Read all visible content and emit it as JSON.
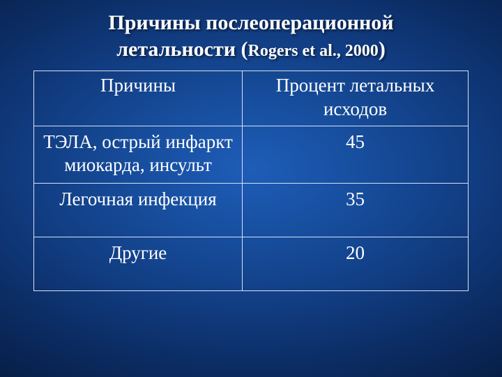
{
  "title": {
    "line1": "Причины послеоперационной",
    "line2_a": "летальности (",
    "paren_inner": "Rogers et al., 2000",
    "line2_b": ")"
  },
  "table": {
    "header": {
      "col1": "Причины",
      "col2": "Процент летальных исходов"
    },
    "rows": [
      {
        "cause": "ТЭЛА, острый инфаркт миокарда, инсульт",
        "percent": "45"
      },
      {
        "cause": "Легочная инфекция",
        "percent": "35"
      },
      {
        "cause": "Другие",
        "percent": "20"
      }
    ]
  },
  "style": {
    "title_color": "#ffffff",
    "title_fontsize_main": 30,
    "title_fontsize_paren": 24,
    "cell_fontsize": 27,
    "text_color": "#ffffff",
    "border_color": "#d8e2f3",
    "bg_gradient_center": "#1e5db8",
    "bg_gradient_edge": "#03102a"
  }
}
